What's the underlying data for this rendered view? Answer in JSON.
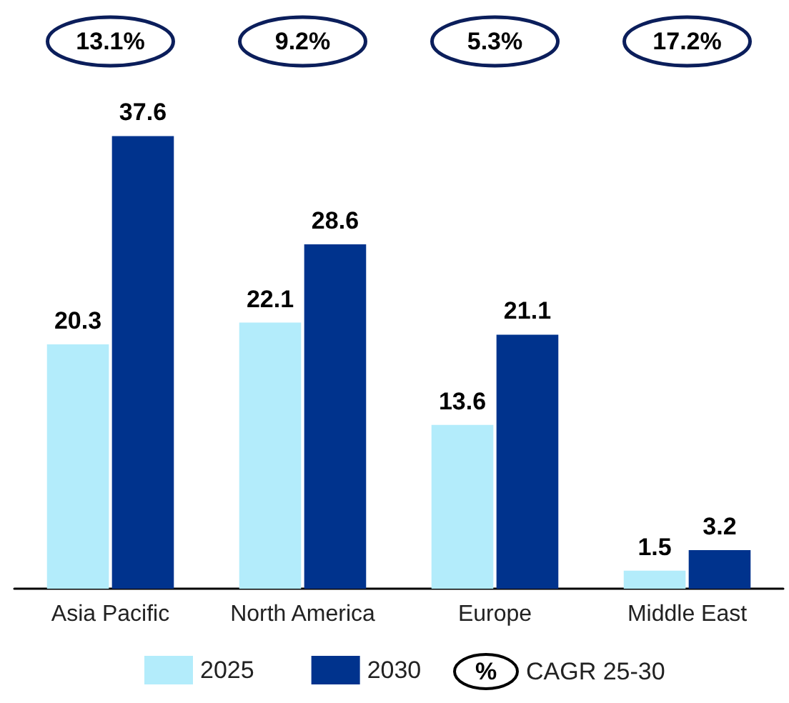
{
  "chart_data": {
    "type": "bar",
    "categories": [
      "Asia Pacific",
      "North America",
      "Europe",
      "Middle East"
    ],
    "series": [
      {
        "name": "2025",
        "color": "#b3ecfb",
        "values": [
          20.3,
          22.1,
          13.6,
          1.5
        ]
      },
      {
        "name": "2030",
        "color": "#00338d",
        "values": [
          37.6,
          28.6,
          21.1,
          3.2
        ]
      }
    ],
    "data_labels": true,
    "legend": "bottom",
    "grid": false,
    "annotations": [
      "13.1%",
      "9.2%",
      "5.3%",
      "17.2%",
      "%",
      "CAGR 25-30"
    ]
  }
}
